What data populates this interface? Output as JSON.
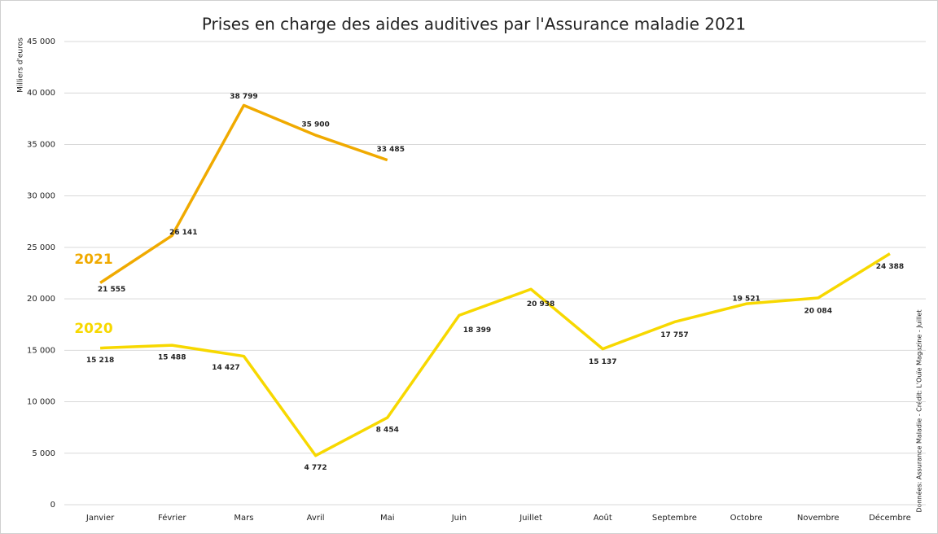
{
  "chart_data": {
    "type": "line",
    "title": "Prises en charge des aides auditives par l'Assurance maladie 2021",
    "y_label": "Milliers d'euros",
    "source": "Données: Assurance Maladie - Crédit: L'Ouïe Magazine - Juillet",
    "categories": [
      "Janvier",
      "Février",
      "Mars",
      "Avril",
      "Mai",
      "Juin",
      "Juillet",
      "Août",
      "Septembre",
      "Octobre",
      "Novembre",
      "Décembre"
    ],
    "series": [
      {
        "name": "2021",
        "color": "#f0aa00",
        "values": [
          21555,
          26141,
          38799,
          35900,
          33485,
          null,
          null,
          null,
          null,
          null,
          null,
          null
        ],
        "value_labels": [
          "21 555",
          "26 141",
          "38 799",
          "35 900",
          "33 485",
          null,
          null,
          null,
          null,
          null,
          null,
          null
        ]
      },
      {
        "name": "2020",
        "color": "#f7d800",
        "values": [
          15218,
          15488,
          14427,
          4772,
          8454,
          18399,
          20938,
          15137,
          17757,
          19521,
          20084,
          24388
        ],
        "value_labels": [
          "15 218",
          "15 488",
          "14 427",
          "4 772",
          "8 454",
          "18 399",
          "20 938",
          "15 137",
          "17 757",
          "19 521",
          "20 084",
          "24 388"
        ]
      }
    ],
    "ylim": [
      0,
      45000
    ],
    "yticks": [
      0,
      {
        "value": 5000,
        "label": "5 000"
      },
      {
        "value": 10000,
        "label": "10 000"
      },
      {
        "value": 15000,
        "label": "15 000"
      },
      {
        "value": 20000,
        "label": "20 000"
      },
      {
        "value": 25000,
        "label": "25 000"
      },
      {
        "value": 30000,
        "label": "30 000"
      },
      {
        "value": 35000,
        "label": "35 000"
      },
      {
        "value": 40000,
        "label": "40 000"
      },
      {
        "value": 45000,
        "label": "45 000"
      }
    ],
    "grid": true
  }
}
